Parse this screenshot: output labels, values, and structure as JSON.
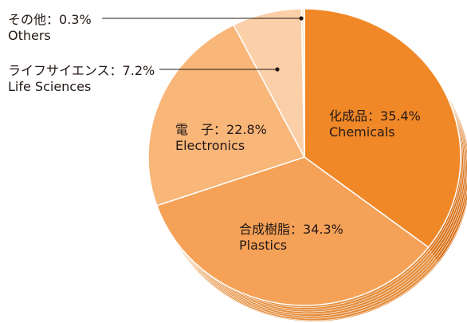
{
  "chart_data": {
    "type": "pie",
    "style": "3d",
    "unit": "%",
    "slices": [
      {
        "label_jp": "化成品",
        "label_en": "Chemicals",
        "value": 35.4,
        "value_text": "35.4%",
        "color": "#f08828",
        "side_color": "#d9731a"
      },
      {
        "label_jp": "合成樹脂",
        "label_en": "Plastics",
        "value": 34.3,
        "value_text": "34.3%",
        "color": "#f5a258",
        "side_color": "#e58d3c"
      },
      {
        "label_jp": "電　子",
        "label_en": "Electronics",
        "value": 22.8,
        "value_text": "22.8%",
        "color": "#f8b679",
        "side_color": "#eca060"
      },
      {
        "label_jp": "ライフサイエンス",
        "label_en": "Life Sciences",
        "value": 7.2,
        "value_text": "7.2%",
        "color": "#fbcfa8",
        "side_color": "#f2b88a"
      },
      {
        "label_jp": "その他",
        "label_en": "Others",
        "value": 0.3,
        "value_text": "0.3%",
        "color": "#fde6d2",
        "side_color": "#f5d2b5"
      }
    ],
    "separator": "："
  }
}
